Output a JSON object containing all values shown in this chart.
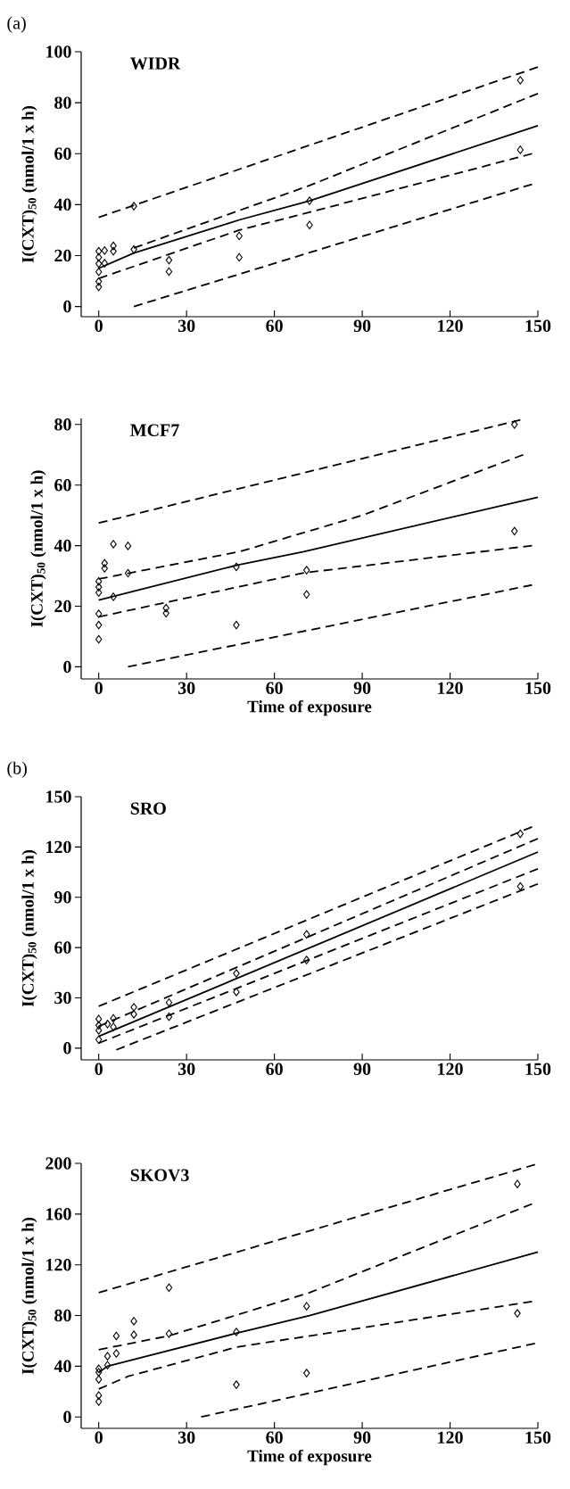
{
  "chart_data": [
    {
      "type": "scatter",
      "title": "WIDR",
      "ylabel": "I(CXT)$_{50}$ (nmol/1 x h)",
      "annotations": [
        "(a)"
      ],
      "xlim": [
        -6,
        150
      ],
      "ylim": [
        -4,
        100
      ],
      "xticks": [
        0,
        30,
        60,
        90,
        120,
        150
      ],
      "yticks": [
        0,
        20,
        40,
        60,
        80,
        100
      ],
      "series": [
        {
          "marker": "diamond",
          "color": "#000000",
          "x": [
            0,
            0,
            0,
            0,
            0,
            0,
            2,
            2,
            5,
            5,
            12,
            12,
            24,
            24,
            48,
            48,
            72,
            72,
            144,
            144
          ],
          "values": [
            21.7,
            19.3,
            16.8,
            13.6,
            9.8,
            7.7,
            22,
            17,
            23.8,
            21.7,
            39.4,
            22.4,
            18.2,
            13.7,
            27.7,
            19.3,
            41.5,
            32,
            88.8,
            61.5
          ]
        },
        {
          "type": "line",
          "line_style": "solid",
          "color": "#000000",
          "x": [
            0,
            12,
            48,
            72,
            150
          ],
          "values": [
            15,
            21,
            34,
            41.5,
            71
          ]
        },
        {
          "type": "line",
          "line_style": "dashed",
          "color": "#000000",
          "x": [
            12,
            72,
            150
          ],
          "values": [
            23,
            47.5,
            83.6
          ]
        },
        {
          "type": "line",
          "line_style": "dashed",
          "color": "#000000",
          "x": [
            0,
            48,
            72,
            148
          ],
          "values": [
            11,
            30,
            37,
            60
          ]
        },
        {
          "type": "line",
          "line_style": "dashed",
          "color": "#000000",
          "x": [
            0,
            150
          ],
          "values": [
            35,
            94
          ]
        },
        {
          "type": "line",
          "line_style": "dashed",
          "color": "#000000",
          "x": [
            12,
            148
          ],
          "values": [
            0,
            48
          ]
        }
      ]
    },
    {
      "type": "scatter",
      "title": "MCF7",
      "xlabel": "Time of exposure",
      "ylabel": "I(CXT)$_{50}$ (nmol/1 x h)",
      "xlim": [
        -6,
        150
      ],
      "ylim": [
        -4,
        82
      ],
      "xticks": [
        0,
        30,
        60,
        90,
        120,
        150
      ],
      "yticks": [
        0,
        20,
        40,
        60,
        80
      ],
      "series": [
        {
          "marker": "diamond",
          "color": "#000000",
          "x": [
            0,
            0,
            0,
            0,
            0,
            0,
            2,
            2,
            5,
            5,
            10,
            10,
            23,
            23,
            47,
            47,
            71,
            71,
            142,
            142
          ],
          "values": [
            28.2,
            26.3,
            24.5,
            17.5,
            13.8,
            9.1,
            34.2,
            32.5,
            40.5,
            23.1,
            39.9,
            30.9,
            19.4,
            17.7,
            33,
            13.8,
            31.9,
            23.9,
            80,
            44.8
          ]
        },
        {
          "type": "line",
          "line_style": "solid",
          "color": "#000000",
          "x": [
            0,
            47,
            70,
            150
          ],
          "values": [
            22,
            33.5,
            38,
            56
          ]
        },
        {
          "type": "line",
          "line_style": "dashed",
          "color": "#000000",
          "x": [
            0,
            48,
            90,
            145
          ],
          "values": [
            29,
            38,
            50,
            70
          ]
        },
        {
          "type": "line",
          "line_style": "dashed",
          "color": "#000000",
          "x": [
            0,
            70,
            148
          ],
          "values": [
            16.5,
            31,
            40
          ]
        },
        {
          "type": "line",
          "line_style": "dashed",
          "color": "#000000",
          "x": [
            0,
            144
          ],
          "values": [
            47.5,
            81.5
          ]
        },
        {
          "type": "line",
          "line_style": "dashed",
          "color": "#000000",
          "x": [
            10,
            148
          ],
          "values": [
            0,
            27
          ]
        }
      ]
    },
    {
      "type": "scatter",
      "title": "SRO",
      "ylabel": "I(CXT)$_{50}$ (nmol/1 x h)",
      "annotations": [
        "(b)"
      ],
      "xlim": [
        -6,
        150
      ],
      "ylim": [
        -7,
        150
      ],
      "xticks": [
        0,
        30,
        60,
        90,
        120,
        150
      ],
      "yticks": [
        0,
        30,
        60,
        90,
        120,
        150
      ],
      "series": [
        {
          "marker": "diamond",
          "color": "#000000",
          "x": [
            0,
            0,
            0,
            0,
            3,
            5,
            5,
            12,
            12,
            24,
            24,
            47,
            47,
            71,
            71,
            144,
            144
          ],
          "values": [
            17.4,
            13.6,
            10.6,
            5.1,
            14.4,
            17.8,
            12.7,
            24.4,
            20.2,
            27.2,
            18.7,
            44.6,
            33.5,
            67.9,
            52.6,
            127.9,
            96.5
          ]
        },
        {
          "type": "line",
          "line_style": "solid",
          "color": "#000000",
          "x": [
            0,
            150
          ],
          "values": [
            7,
            117
          ]
        },
        {
          "type": "line",
          "line_style": "dashed",
          "color": "#000000",
          "x": [
            0,
            150
          ],
          "values": [
            13,
            125
          ]
        },
        {
          "type": "line",
          "line_style": "dashed",
          "color": "#000000",
          "x": [
            0,
            150
          ],
          "values": [
            3,
            107
          ]
        },
        {
          "type": "line",
          "line_style": "dashed",
          "color": "#000000",
          "x": [
            0,
            148
          ],
          "values": [
            25,
            132
          ]
        },
        {
          "type": "line",
          "line_style": "dashed",
          "color": "#000000",
          "x": [
            6,
            150
          ],
          "values": [
            -1,
            98
          ]
        }
      ]
    },
    {
      "type": "scatter",
      "title": "SKOV3",
      "xlabel": "Time of exposure",
      "ylabel": "I(CXT)$_{50}$ (nmol/1 x h)",
      "xlim": [
        -6,
        150
      ],
      "ylim": [
        -9,
        200
      ],
      "xticks": [
        0,
        30,
        60,
        90,
        120,
        150
      ],
      "yticks": [
        0,
        40,
        80,
        120,
        160,
        200
      ],
      "series": [
        {
          "marker": "diamond",
          "color": "#000000",
          "x": [
            0,
            0,
            0,
            0,
            0,
            3,
            3,
            6,
            6,
            12,
            12,
            24,
            24,
            47,
            47,
            71,
            71,
            143,
            143
          ],
          "values": [
            38,
            35.2,
            29.6,
            16.9,
            12.1,
            47.9,
            40.8,
            63.9,
            50.1,
            75.5,
            64.8,
            102,
            65.6,
            67,
            25.4,
            87.3,
            34.6,
            183.7,
            81.7
          ]
        },
        {
          "type": "line",
          "line_style": "solid",
          "color": "#000000",
          "x": [
            0,
            3,
            47,
            72,
            150
          ],
          "values": [
            35,
            40,
            66,
            80,
            130
          ]
        },
        {
          "type": "line",
          "line_style": "dashed",
          "color": "#000000",
          "x": [
            0,
            24,
            72,
            148
          ],
          "values": [
            53,
            64,
            98,
            168
          ]
        },
        {
          "type": "line",
          "line_style": "dashed",
          "color": "#000000",
          "x": [
            0,
            10,
            47,
            148
          ],
          "values": [
            22,
            32,
            55,
            91
          ]
        },
        {
          "type": "line",
          "line_style": "dashed",
          "color": "#000000",
          "x": [
            0,
            149
          ],
          "values": [
            98,
            199
          ]
        },
        {
          "type": "line",
          "line_style": "dashed",
          "color": "#000000",
          "x": [
            35,
            149
          ],
          "values": [
            0,
            58
          ]
        }
      ]
    }
  ]
}
